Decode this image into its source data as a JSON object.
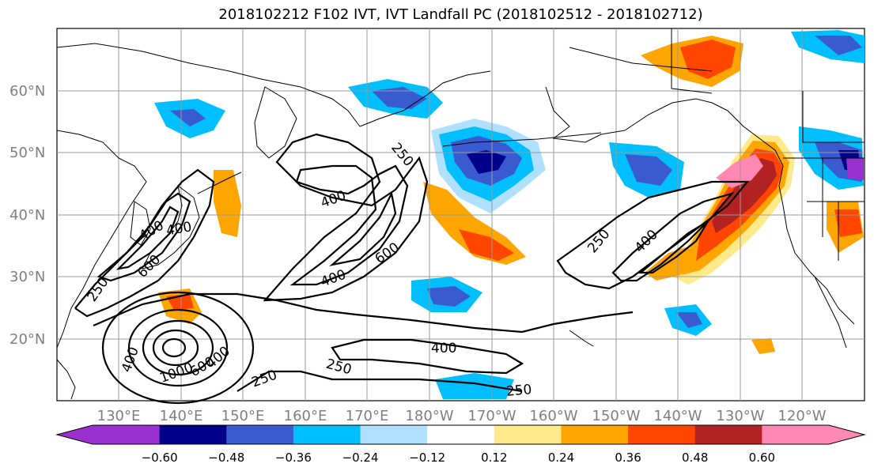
{
  "title": "2018102212 F102 IVT, IVT Landfall PC (2018102512 - 2018102712)",
  "latitude_labels": [
    "60°N",
    "50°N",
    "40°N",
    "30°N",
    "20°N"
  ],
  "longitude_labels": [
    "130°E",
    "140°E",
    "150°E",
    "160°E",
    "170°E",
    "180°W",
    "170°W",
    "160°W",
    "150°W",
    "140°W",
    "130°W",
    "120°W"
  ],
  "contour_labels": [
    "250",
    "400",
    "400",
    "600",
    "400",
    "250",
    "600",
    "400",
    "400",
    "250",
    "250",
    "400",
    "250",
    "1000",
    "600",
    "400",
    "250",
    "400",
    "250"
  ],
  "colorbar": {
    "ticks": [
      "−0.60",
      "−0.48",
      "−0.36",
      "−0.24",
      "−0.12",
      "0.12",
      "0.24",
      "0.36",
      "0.48",
      "0.60"
    ],
    "colors": [
      "#9b30d0",
      "#00008b",
      "#3a5bd0",
      "#00bfff",
      "#b0e0ff",
      "#ffffff",
      "#ffe98a",
      "#ffa500",
      "#ff4500",
      "#b22222",
      "#ff88b4"
    ]
  },
  "colors": {
    "grid": "#999999",
    "coast": "#000000",
    "contour": "#000000"
  }
}
